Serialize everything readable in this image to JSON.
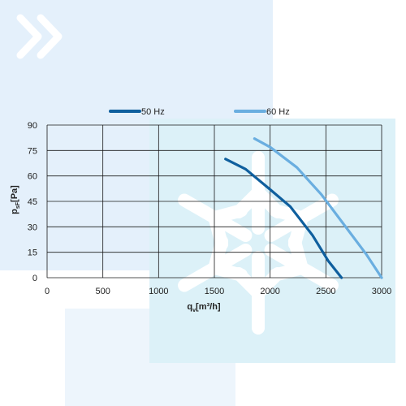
{
  "colors": {
    "panel_left": "#e4f0fb",
    "panel_right": "#dcf1f8",
    "panel_bottom": "#edf5fc",
    "decor_white": "#ffffff",
    "grid": "#1a1a1a",
    "text": "#222222"
  },
  "decor": {
    "chevrons_icon": "double-chevron-right-icon",
    "snowflake_icon": "snowflake-icon"
  },
  "chart_data": {
    "type": "line",
    "title": "",
    "xlabel": "q",
    "xlabel_sub": "v",
    "xlabel_unit": "[m³/h]",
    "ylabel": "p",
    "ylabel_sub": "sF",
    "ylabel_unit": "[Pa]",
    "xlim": [
      0,
      3000
    ],
    "ylim": [
      0,
      90
    ],
    "xticks": [
      0,
      500,
      1000,
      1500,
      2000,
      2500,
      3000
    ],
    "yticks": [
      0,
      15,
      30,
      45,
      60,
      75,
      90
    ],
    "grid": true,
    "legend": "top-center",
    "series": [
      {
        "name": "50 Hz",
        "color": "#0f5f9e",
        "x": [
          1600,
          1780,
          2000,
          2180,
          2380,
          2520,
          2640
        ],
        "y": [
          70,
          64,
          52,
          42,
          25,
          10,
          0
        ]
      },
      {
        "name": "60 Hz",
        "color": "#6aaee0",
        "x": [
          1860,
          2000,
          2240,
          2460,
          2700,
          2860,
          3000
        ],
        "y": [
          82,
          77,
          65,
          49,
          28,
          14,
          0
        ]
      }
    ]
  }
}
